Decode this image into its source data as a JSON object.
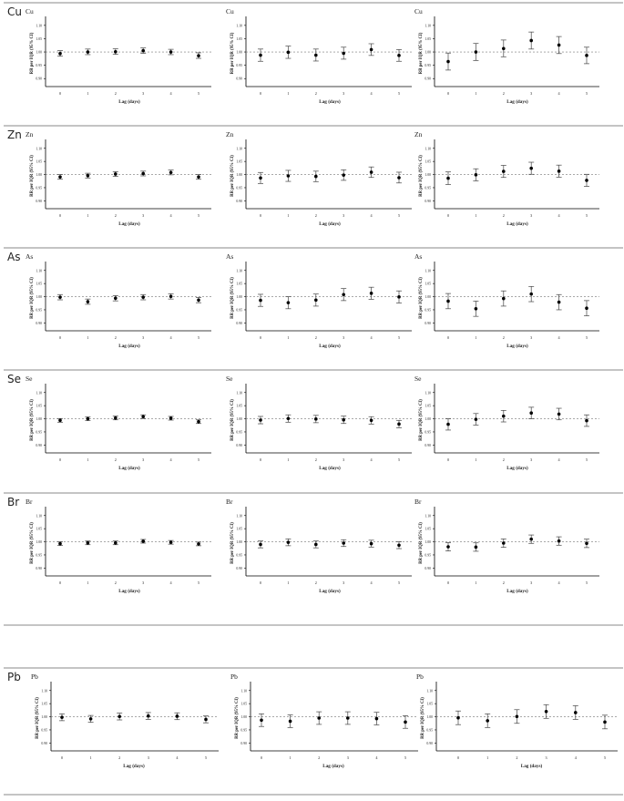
{
  "chart_data": [
    {
      "type": "scatter",
      "row": "Cu",
      "title": "Cu",
      "xlabel": "Lag (days)",
      "ylabel": "RR per IQR (95% CI)",
      "x": [
        0,
        1,
        2,
        3,
        4,
        5
      ],
      "ylim": [
        0.87,
        1.12
      ],
      "yticks": [
        "0.90",
        "0.95",
        "1.00",
        "1.05",
        "1.10"
      ],
      "reference": 1.0,
      "series": [
        {
          "estimate": [
            0.994,
            1.0,
            1.001,
            1.005,
            1.0,
            0.986
          ],
          "lower": [
            0.984,
            0.99,
            0.991,
            0.995,
            0.99,
            0.976
          ],
          "upper": [
            1.005,
            1.011,
            1.012,
            1.015,
            1.01,
            0.997
          ]
        }
      ]
    },
    {
      "type": "scatter",
      "row": "Cu",
      "title": "Cu",
      "xlabel": "Lag (days)",
      "ylabel": "RR per IQR (95% CI)",
      "x": [
        0,
        1,
        2,
        3,
        4,
        5
      ],
      "ylim": [
        0.87,
        1.12
      ],
      "yticks": [
        "0.90",
        "0.95",
        "1.00",
        "1.05",
        "1.10"
      ],
      "reference": 1.0,
      "series": [
        {
          "estimate": [
            0.988,
            0.999,
            0.988,
            0.995,
            1.009,
            0.987
          ],
          "lower": [
            0.965,
            0.976,
            0.966,
            0.973,
            0.987,
            0.965
          ],
          "upper": [
            1.011,
            1.022,
            1.011,
            1.018,
            1.031,
            1.009
          ]
        }
      ]
    },
    {
      "type": "scatter",
      "row": "Cu",
      "title": "Cu",
      "xlabel": "Lag (days)",
      "ylabel": "RR per IQR (95% CI)",
      "x": [
        0,
        1,
        2,
        3,
        4,
        5
      ],
      "ylim": [
        0.87,
        1.12
      ],
      "yticks": [
        "0.90",
        "0.95",
        "1.00",
        "1.05",
        "1.10"
      ],
      "reference": 1.0,
      "series": [
        {
          "estimate": [
            0.964,
            1.0,
            1.013,
            1.043,
            1.026,
            0.987
          ],
          "lower": [
            0.932,
            0.968,
            0.982,
            1.011,
            0.994,
            0.956
          ],
          "upper": [
            0.996,
            1.032,
            1.045,
            1.075,
            1.058,
            1.018
          ]
        }
      ]
    },
    {
      "type": "scatter",
      "row": "Zn",
      "title": "Zn",
      "xlabel": "Lag (days)",
      "ylabel": "RR per IQR (95% CI)",
      "x": [
        0,
        1,
        2,
        3,
        4,
        5
      ],
      "ylim": [
        0.87,
        1.12
      ],
      "yticks": [
        "0.90",
        "0.95",
        "1.00",
        "1.05",
        "1.10"
      ],
      "reference": 1.0,
      "series": [
        {
          "estimate": [
            0.991,
            0.996,
            1.002,
            1.004,
            1.008,
            0.991
          ],
          "lower": [
            0.982,
            0.987,
            0.993,
            0.995,
            0.999,
            0.982
          ],
          "upper": [
            1.0,
            1.005,
            1.011,
            1.013,
            1.017,
            1.0
          ]
        }
      ]
    },
    {
      "type": "scatter",
      "row": "Zn",
      "title": "Zn",
      "xlabel": "Lag (days)",
      "ylabel": "RR per IQR (95% CI)",
      "x": [
        0,
        1,
        2,
        3,
        4,
        5
      ],
      "ylim": [
        0.87,
        1.12
      ],
      "yticks": [
        "0.90",
        "0.95",
        "1.00",
        "1.05",
        "1.10"
      ],
      "reference": 1.0,
      "series": [
        {
          "estimate": [
            0.987,
            0.995,
            0.993,
            0.998,
            1.009,
            0.988
          ],
          "lower": [
            0.966,
            0.974,
            0.973,
            0.978,
            0.989,
            0.968
          ],
          "upper": [
            1.008,
            1.016,
            1.013,
            1.018,
            1.029,
            1.009
          ]
        }
      ]
    },
    {
      "type": "scatter",
      "row": "Zn",
      "title": "Zn",
      "xlabel": "Lag (days)",
      "ylabel": "RR per IQR (95% CI)",
      "x": [
        0,
        1,
        2,
        3,
        4,
        5
      ],
      "ylim": [
        0.87,
        1.12
      ],
      "yticks": [
        "0.90",
        "0.95",
        "1.00",
        "1.05",
        "1.10"
      ],
      "reference": 1.0,
      "series": [
        {
          "estimate": [
            0.986,
            0.999,
            1.012,
            1.024,
            1.013,
            0.978
          ],
          "lower": [
            0.962,
            0.976,
            0.989,
            1.001,
            0.99,
            0.955
          ],
          "upper": [
            1.01,
            1.022,
            1.035,
            1.047,
            1.036,
            1.001
          ]
        }
      ]
    },
    {
      "type": "scatter",
      "row": "As",
      "title": "As",
      "xlabel": "Lag (days)",
      "ylabel": "RR per IQR (95% CI)",
      "x": [
        0,
        1,
        2,
        3,
        4,
        5
      ],
      "ylim": [
        0.87,
        1.12
      ],
      "yticks": [
        "0.90",
        "0.95",
        "1.00",
        "1.05",
        "1.10"
      ],
      "reference": 1.0,
      "series": [
        {
          "estimate": [
            0.998,
            0.981,
            0.994,
            0.998,
            1.001,
            0.987
          ],
          "lower": [
            0.988,
            0.971,
            0.984,
            0.988,
            0.991,
            0.977
          ],
          "upper": [
            1.008,
            0.991,
            1.004,
            1.008,
            1.011,
            0.997
          ]
        }
      ]
    },
    {
      "type": "scatter",
      "row": "As",
      "title": "As",
      "xlabel": "Lag (days)",
      "ylabel": "RR per IQR (95% CI)",
      "x": [
        0,
        1,
        2,
        3,
        4,
        5
      ],
      "ylim": [
        0.87,
        1.12
      ],
      "yticks": [
        "0.90",
        "0.95",
        "1.00",
        "1.05",
        "1.10"
      ],
      "reference": 1.0,
      "series": [
        {
          "estimate": [
            0.986,
            0.977,
            0.987,
            1.008,
            1.013,
            0.999
          ],
          "lower": [
            0.963,
            0.954,
            0.964,
            0.985,
            0.99,
            0.976
          ],
          "upper": [
            1.009,
            1.0,
            1.01,
            1.031,
            1.036,
            1.022
          ]
        }
      ]
    },
    {
      "type": "scatter",
      "row": "As",
      "title": "As",
      "xlabel": "Lag (days)",
      "ylabel": "RR per IQR (95% CI)",
      "x": [
        0,
        1,
        2,
        3,
        4,
        5
      ],
      "ylim": [
        0.87,
        1.12
      ],
      "yticks": [
        "0.90",
        "0.95",
        "1.00",
        "1.05",
        "1.10"
      ],
      "reference": 1.0,
      "series": [
        {
          "estimate": [
            0.983,
            0.954,
            0.993,
            1.01,
            0.979,
            0.956
          ],
          "lower": [
            0.954,
            0.925,
            0.964,
            0.981,
            0.95,
            0.927
          ],
          "upper": [
            1.012,
            0.983,
            1.022,
            1.039,
            1.008,
            0.985
          ]
        }
      ]
    },
    {
      "type": "scatter",
      "row": "Se",
      "title": "Se",
      "xlabel": "Lag (days)",
      "ylabel": "RR per IQR (95% CI)",
      "x": [
        0,
        1,
        2,
        3,
        4,
        5
      ],
      "ylim": [
        0.87,
        1.12
      ],
      "yticks": [
        "0.90",
        "0.95",
        "1.00",
        "1.05",
        "1.10"
      ],
      "reference": 1.0,
      "series": [
        {
          "estimate": [
            0.994,
            1.0,
            1.003,
            1.008,
            1.002,
            0.989
          ],
          "lower": [
            0.987,
            0.993,
            0.996,
            1.001,
            0.995,
            0.982
          ],
          "upper": [
            1.001,
            1.007,
            1.01,
            1.015,
            1.009,
            0.996
          ]
        }
      ]
    },
    {
      "type": "scatter",
      "row": "Se",
      "title": "Se",
      "xlabel": "Lag (days)",
      "ylabel": "RR per IQR (95% CI)",
      "x": [
        0,
        1,
        2,
        3,
        4,
        5
      ],
      "ylim": [
        0.87,
        1.12
      ],
      "yticks": [
        "0.90",
        "0.95",
        "1.00",
        "1.05",
        "1.10"
      ],
      "reference": 1.0,
      "series": [
        {
          "estimate": [
            0.995,
            1.001,
            0.999,
            0.996,
            0.994,
            0.98
          ],
          "lower": [
            0.981,
            0.987,
            0.985,
            0.982,
            0.98,
            0.966
          ],
          "upper": [
            1.009,
            1.015,
            1.013,
            1.01,
            1.008,
            0.994
          ]
        }
      ]
    },
    {
      "type": "scatter",
      "row": "Se",
      "title": "Se",
      "xlabel": "Lag (days)",
      "ylabel": "RR per IQR (95% CI)",
      "x": [
        0,
        1,
        2,
        3,
        4,
        5
      ],
      "ylim": [
        0.87,
        1.12
      ],
      "yticks": [
        "0.90",
        "0.95",
        "1.00",
        "1.05",
        "1.10"
      ],
      "reference": 1.0,
      "series": [
        {
          "estimate": [
            0.979,
            0.998,
            1.01,
            1.022,
            1.018,
            0.993
          ],
          "lower": [
            0.957,
            0.976,
            0.988,
            1.0,
            0.996,
            0.971
          ],
          "upper": [
            1.001,
            1.02,
            1.032,
            1.044,
            1.04,
            1.015
          ]
        }
      ]
    },
    {
      "type": "scatter",
      "row": "Br",
      "title": "Br",
      "xlabel": "Lag (days)",
      "ylabel": "RR per IQR (95% CI)",
      "x": [
        0,
        1,
        2,
        3,
        4,
        5
      ],
      "ylim": [
        0.87,
        1.12
      ],
      "yticks": [
        "0.90",
        "0.95",
        "1.00",
        "1.05",
        "1.10"
      ],
      "reference": 1.0,
      "series": [
        {
          "estimate": [
            0.993,
            0.996,
            0.996,
            1.002,
            0.998,
            0.992
          ],
          "lower": [
            0.986,
            0.989,
            0.989,
            0.995,
            0.991,
            0.985
          ],
          "upper": [
            1.0,
            1.003,
            1.003,
            1.009,
            1.005,
            0.999
          ]
        }
      ]
    },
    {
      "type": "scatter",
      "row": "Br",
      "title": "Br",
      "xlabel": "Lag (days)",
      "ylabel": "RR per IQR (95% CI)",
      "x": [
        0,
        1,
        2,
        3,
        4,
        5
      ],
      "ylim": [
        0.87,
        1.12
      ],
      "yticks": [
        "0.90",
        "0.95",
        "1.00",
        "1.05",
        "1.10"
      ],
      "reference": 1.0,
      "series": [
        {
          "estimate": [
            0.99,
            0.998,
            0.99,
            0.995,
            0.993,
            0.987
          ],
          "lower": [
            0.977,
            0.985,
            0.977,
            0.982,
            0.98,
            0.974
          ],
          "upper": [
            1.003,
            1.011,
            1.003,
            1.008,
            1.006,
            1.0
          ]
        }
      ]
    },
    {
      "type": "scatter",
      "row": "Br",
      "title": "Br",
      "xlabel": "Lag (days)",
      "ylabel": "RR per IQR (95% CI)",
      "x": [
        0,
        1,
        2,
        3,
        4,
        5
      ],
      "ylim": [
        0.87,
        1.12
      ],
      "yticks": [
        "0.90",
        "0.95",
        "1.00",
        "1.05",
        "1.10"
      ],
      "reference": 1.0,
      "series": [
        {
          "estimate": [
            0.981,
            0.98,
            0.995,
            1.01,
            1.003,
            0.994
          ],
          "lower": [
            0.965,
            0.964,
            0.979,
            0.994,
            0.987,
            0.978
          ],
          "upper": [
            0.997,
            0.996,
            1.011,
            1.026,
            1.019,
            1.01
          ]
        }
      ]
    },
    {
      "type": "scatter",
      "row": "Pb",
      "title": "Pb",
      "xlabel": "Lag (days)",
      "ylabel": "RR per IQR (95% CI)",
      "x": [
        0,
        1,
        2,
        3,
        4,
        5
      ],
      "ylim": [
        0.87,
        1.12
      ],
      "yticks": [
        "0.90",
        "0.95",
        "1.00",
        "1.05",
        "1.10"
      ],
      "reference": 1.0,
      "series": [
        {
          "estimate": [
            0.998,
            0.992,
            1.001,
            1.003,
            1.002,
            0.99
          ],
          "lower": [
            0.985,
            0.979,
            0.988,
            0.99,
            0.989,
            0.977
          ],
          "upper": [
            1.011,
            1.005,
            1.014,
            1.016,
            1.015,
            1.003
          ]
        }
      ]
    },
    {
      "type": "scatter",
      "row": "Pb",
      "title": "Pb",
      "xlabel": "Lag (days)",
      "ylabel": "RR per IQR (95% CI)",
      "x": [
        0,
        1,
        2,
        3,
        4,
        5
      ],
      "ylim": [
        0.87,
        1.12
      ],
      "yticks": [
        "0.90",
        "0.95",
        "1.00",
        "1.05",
        "1.10"
      ],
      "reference": 1.0,
      "series": [
        {
          "estimate": [
            0.987,
            0.983,
            0.995,
            0.995,
            0.993,
            0.98
          ],
          "lower": [
            0.963,
            0.959,
            0.971,
            0.971,
            0.969,
            0.956
          ],
          "upper": [
            1.011,
            1.007,
            1.019,
            1.019,
            1.017,
            1.004
          ]
        }
      ]
    },
    {
      "type": "scatter",
      "row": "Pb",
      "title": "Pb",
      "xlabel": "Lag (days)",
      "ylabel": "RR per IQR (95% CI)",
      "x": [
        0,
        1,
        2,
        3,
        4,
        5
      ],
      "ylim": [
        0.87,
        1.12
      ],
      "yticks": [
        "0.90",
        "0.95",
        "1.00",
        "1.05",
        "1.10"
      ],
      "reference": 1.0,
      "series": [
        {
          "estimate": [
            0.996,
            0.985,
            1.001,
            1.02,
            1.016,
            0.98
          ],
          "lower": [
            0.97,
            0.959,
            0.975,
            0.994,
            0.99,
            0.954
          ],
          "upper": [
            1.022,
            1.011,
            1.027,
            1.046,
            1.042,
            1.006
          ]
        }
      ]
    }
  ],
  "colors": {
    "marker": "#000000",
    "errorbar": "#444444",
    "reference_line": "#777777",
    "axis": "#000000",
    "rule": "#888888",
    "text": "#222222"
  }
}
